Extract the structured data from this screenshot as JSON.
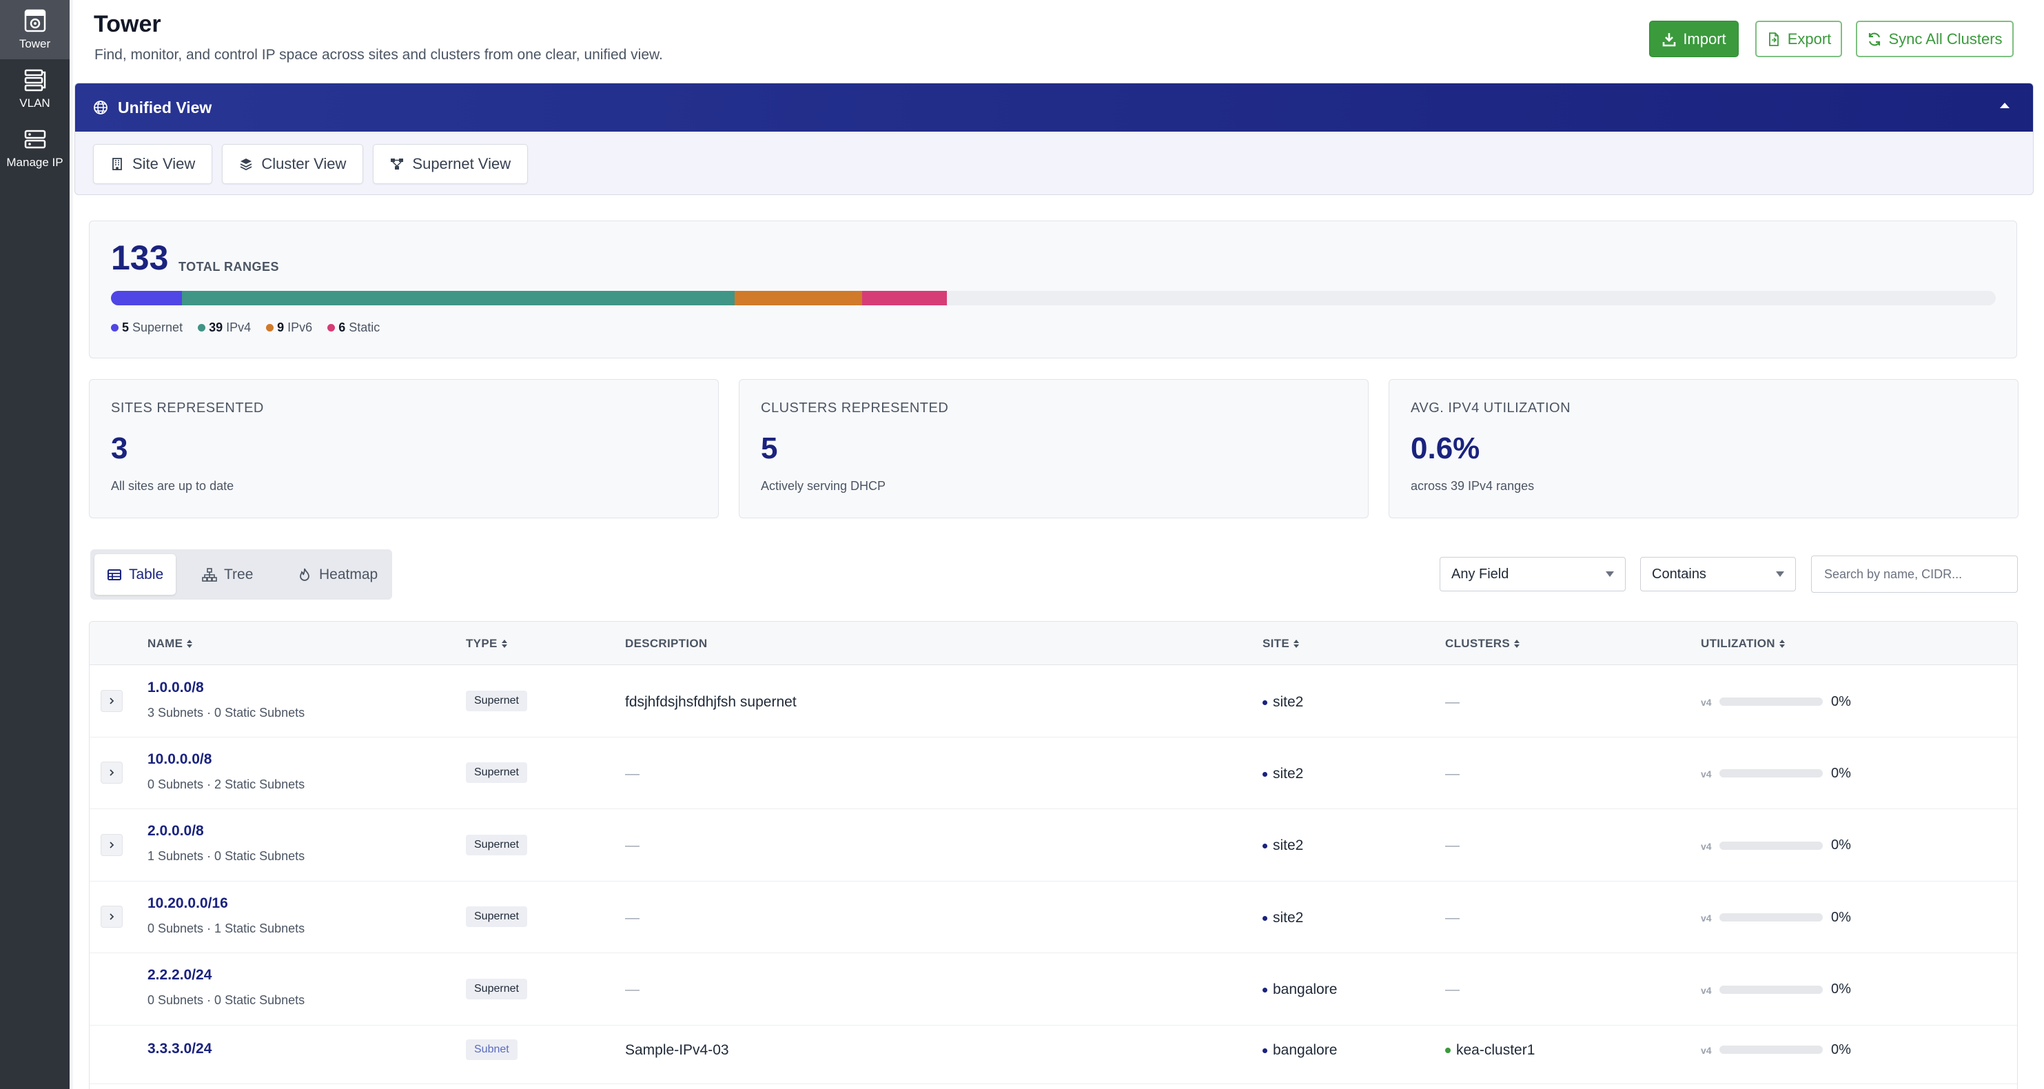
{
  "sidebar": {
    "items": [
      {
        "label": "Tower",
        "icon": "tower-icon",
        "active": true
      },
      {
        "label": "VLAN",
        "icon": "vlan-icon",
        "active": false
      },
      {
        "label": "Manage IP",
        "icon": "server-icon",
        "active": false
      }
    ]
  },
  "header": {
    "title": "Tower",
    "subtitle": "Find, monitor, and control IP space across sites and clusters from one clear, unified view.",
    "import_label": "Import",
    "export_label": "Export",
    "sync_label": "Sync All Clusters"
  },
  "unified": {
    "title": "Unified View",
    "tabs": [
      {
        "label": "Site View",
        "icon": "building-icon"
      },
      {
        "label": "Cluster View",
        "icon": "layers-icon"
      },
      {
        "label": "Supernet View",
        "icon": "network-icon"
      }
    ]
  },
  "summary": {
    "total": "133",
    "total_label": "TOTAL RANGES",
    "breakdown": [
      {
        "count": "5",
        "label": "Supernet",
        "value": 5,
        "color": "#4f46e5"
      },
      {
        "count": "39",
        "label": "IPv4",
        "value": 39,
        "color": "#3f9586"
      },
      {
        "count": "9",
        "label": "IPv6",
        "value": 9,
        "color": "#d07a2a"
      },
      {
        "count": "6",
        "label": "Static",
        "value": 6,
        "color": "#d63d76"
      }
    ]
  },
  "stats": [
    {
      "label": "SITES REPRESENTED",
      "value": "3",
      "sub": "All sites are up to date"
    },
    {
      "label": "CLUSTERS REPRESENTED",
      "value": "5",
      "sub": "Actively serving DHCP"
    },
    {
      "label": "AVG. IPV4 UTILIZATION",
      "value": "0.6%",
      "sub": "across 39 IPv4 ranges"
    }
  ],
  "view_modes": [
    {
      "label": "Table",
      "icon": "table-icon",
      "active": true
    },
    {
      "label": "Tree",
      "icon": "tree-icon",
      "active": false
    },
    {
      "label": "Heatmap",
      "icon": "flame-icon",
      "active": false
    }
  ],
  "filters": {
    "field": "Any Field",
    "op": "Contains",
    "search_placeholder": "Search by name, CIDR..."
  },
  "table": {
    "headers": {
      "name": "NAME",
      "type": "TYPE",
      "description": "DESCRIPTION",
      "site": "SITE",
      "clusters": "CLUSTERS",
      "utilization": "UTILIZATION"
    },
    "rows": [
      {
        "name": "1.0.0.0/8",
        "meta": "3 Subnets · 0 Static Subnets",
        "type": "Supernet",
        "description": "fdsjhfdsjhsfdhjfsh supernet",
        "site": "site2",
        "clusters": "—",
        "ver": "v4",
        "util": "0%",
        "util_value": 0
      },
      {
        "name": "10.0.0.0/8",
        "meta": "0 Subnets · 2 Static Subnets",
        "type": "Supernet",
        "description": "—",
        "site": "site2",
        "clusters": "—",
        "ver": "v4",
        "util": "0%",
        "util_value": 0
      },
      {
        "name": "2.0.0.0/8",
        "meta": "1 Subnets · 0 Static Subnets",
        "type": "Supernet",
        "description": "—",
        "site": "site2",
        "clusters": "—",
        "ver": "v4",
        "util": "0%",
        "util_value": 0
      },
      {
        "name": "10.20.0.0/16",
        "meta": "0 Subnets · 1 Static Subnets",
        "type": "Supernet",
        "description": "—",
        "site": "site2",
        "clusters": "—",
        "ver": "v4",
        "util": "0%",
        "util_value": 0
      },
      {
        "name": "2.2.2.0/24",
        "meta": "0 Subnets · 0 Static Subnets",
        "type": "Supernet",
        "description": "—",
        "site": "bangalore",
        "clusters": "—",
        "ver": "v4",
        "util": "0%",
        "util_value": 0
      },
      {
        "name": "3.3.3.0/24",
        "meta": "",
        "type": "Subnet",
        "description": "Sample-IPv4-03",
        "site": "bangalore",
        "clusters": "kea-cluster1",
        "ver": "v4",
        "util": "0%",
        "util_value": 0
      }
    ]
  }
}
